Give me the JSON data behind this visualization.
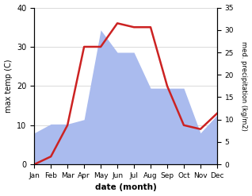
{
  "months": [
    "Jan",
    "Feb",
    "Mar",
    "Apr",
    "May",
    "Jun",
    "Jul",
    "Aug",
    "Sep",
    "Oct",
    "Nov",
    "Dec"
  ],
  "temp": [
    0,
    2,
    10,
    30,
    30,
    36,
    35,
    35,
    20,
    10,
    9,
    13
  ],
  "precip": [
    7,
    9,
    9,
    10,
    30,
    25,
    25,
    17,
    17,
    17,
    7,
    11
  ],
  "temp_color": "#cc2222",
  "precip_color": "#aabbee",
  "ylim_temp": [
    0,
    40
  ],
  "ylim_precip": [
    0,
    35
  ],
  "ylabel_left": "max temp (C)",
  "ylabel_right": "med. precipitation (kg/m2)",
  "xlabel": "date (month)",
  "bg_color": "#ffffff",
  "yticks_left": [
    0,
    10,
    20,
    30,
    40
  ],
  "yticks_right": [
    0,
    5,
    10,
    15,
    20,
    25,
    30,
    35
  ],
  "temp_linewidth": 1.8,
  "figsize": [
    3.18,
    2.47
  ],
  "dpi": 100
}
